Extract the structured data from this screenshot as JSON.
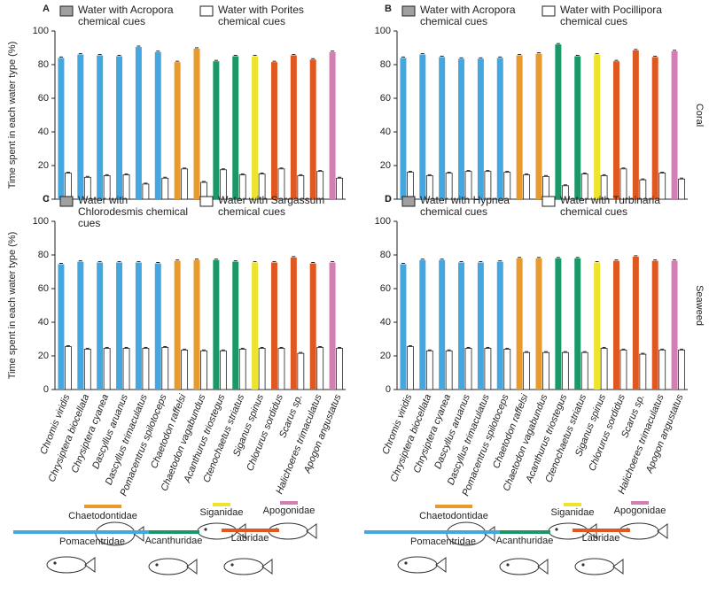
{
  "chart_data": [
    {
      "type": "bar",
      "panel": "A",
      "ylabel": "Time spent in each water type (%)",
      "ylim": [
        0,
        100
      ],
      "yticks": [
        0,
        20,
        40,
        60,
        80,
        100
      ],
      "series": [
        {
          "name": "Water with Acropora chemical cues",
          "color": "#a0a0a0",
          "colors": [
            "#45a7e0",
            "#45a7e0",
            "#45a7e0",
            "#45a7e0",
            "#45a7e0",
            "#45a7e0",
            "#e89a2c",
            "#e89a2c",
            "#1b9868",
            "#1b9868",
            "#eee42e",
            "#e0581f",
            "#e0581f",
            "#e0581f",
            "#d37fb3"
          ],
          "values": [
            84,
            86,
            85.5,
            85,
            90.5,
            87.5,
            81.5,
            89.5,
            82,
            85,
            85,
            81.5,
            85.5,
            83,
            87.5
          ]
        },
        {
          "name": "Water with Porites chemical cues",
          "color": "#ffffff",
          "values": [
            15.5,
            13,
            14,
            14.5,
            9,
            12.5,
            18,
            10,
            17.5,
            14.5,
            15,
            18,
            14,
            16.5,
            12.5
          ]
        }
      ]
    },
    {
      "type": "bar",
      "panel": "B",
      "row_label": "Coral",
      "ylim": [
        0,
        100
      ],
      "yticks": [
        0,
        20,
        40,
        60,
        80,
        100
      ],
      "series": [
        {
          "name": "Water with Acropora chemical cues",
          "color": "#a0a0a0",
          "colors": [
            "#45a7e0",
            "#45a7e0",
            "#45a7e0",
            "#45a7e0",
            "#45a7e0",
            "#45a7e0",
            "#e89a2c",
            "#e89a2c",
            "#1b9868",
            "#1b9868",
            "#eee42e",
            "#e0581f",
            "#e0581f",
            "#e0581f",
            "#d37fb3"
          ],
          "values": [
            84,
            86,
            84.5,
            83.5,
            83.5,
            84,
            85.5,
            86.5,
            92,
            85,
            86,
            82,
            88.5,
            84.5,
            88
          ]
        },
        {
          "name": "Water with Pocillipora chemical cues",
          "color": "#ffffff",
          "values": [
            16,
            14,
            15.5,
            16.5,
            16.5,
            16,
            14.5,
            13.5,
            8,
            15,
            14,
            18,
            11.5,
            15.5,
            12
          ]
        }
      ]
    },
    {
      "type": "bar",
      "panel": "C",
      "ylabel": "Time spent in each water type (%)",
      "ylim": [
        0,
        100
      ],
      "yticks": [
        0,
        20,
        40,
        60,
        80,
        100
      ],
      "categories": [
        "Chromis viridis",
        "Chrysiptera biocellata",
        "Chrysiptera cyanea",
        "Dascyllus aruanus",
        "Dascyllus trimaculatus",
        "Pomacentrus spilotoceps",
        "Chaetodon raffelsi",
        "Chaetodon vagabundus",
        "Acanthurus triostegus",
        "Ctenochaetus striatus",
        "Siganus spinus",
        "Chlorurus sordidus",
        "Scarus sp.",
        "Halichoeres trimaculatus",
        "Apogon angustatus"
      ],
      "series": [
        {
          "name": "Water with Chlorodesmis chemical cues",
          "color": "#a0a0a0",
          "colors": [
            "#45a7e0",
            "#45a7e0",
            "#45a7e0",
            "#45a7e0",
            "#45a7e0",
            "#45a7e0",
            "#e89a2c",
            "#e89a2c",
            "#1b9868",
            "#1b9868",
            "#eee42e",
            "#e0581f",
            "#e0581f",
            "#e0581f",
            "#d37fb3"
          ],
          "values": [
            74.5,
            76,
            75.5,
            75.5,
            75.5,
            75,
            76.5,
            77,
            77,
            76,
            75.5,
            75.5,
            78.5,
            75,
            75.5
          ]
        },
        {
          "name": "Water with Sargassum chemical cues",
          "color": "#ffffff",
          "values": [
            25.5,
            24,
            24.5,
            24.5,
            24.5,
            25,
            23.5,
            23,
            23,
            24,
            24.5,
            24.5,
            21.5,
            25,
            24.5
          ]
        }
      ]
    },
    {
      "type": "bar",
      "panel": "D",
      "row_label": "Seaweed",
      "ylim": [
        0,
        100
      ],
      "yticks": [
        0,
        20,
        40,
        60,
        80,
        100
      ],
      "categories": [
        "Chromis viridis",
        "Chrysiptera biocellata",
        "Chrysiptera cyanea",
        "Dascyllus aruanus",
        "Dascyllus trimaculatus",
        "Pomacentrus spilotoceps",
        "Chaetodon raffelsi",
        "Chaetodon vagabundus",
        "Acanthurus triostegus",
        "Ctenochaetus striatus",
        "Siganus spinus",
        "Chlorurus sordidus",
        "Scarus sp.",
        "Halichoeres trimaculatus",
        "Apogon angustatus"
      ],
      "series": [
        {
          "name": "Water with Hypnea chemical cues",
          "color": "#a0a0a0",
          "colors": [
            "#45a7e0",
            "#45a7e0",
            "#45a7e0",
            "#45a7e0",
            "#45a7e0",
            "#45a7e0",
            "#e89a2c",
            "#e89a2c",
            "#1b9868",
            "#1b9868",
            "#eee42e",
            "#e0581f",
            "#e0581f",
            "#e0581f",
            "#d37fb3"
          ],
          "values": [
            74.5,
            77,
            77,
            75.5,
            75.5,
            76,
            78,
            78,
            78,
            78,
            75.5,
            76.5,
            79,
            76.5,
            76.5
          ]
        },
        {
          "name": "Water with Turbinaria chemical cues",
          "color": "#ffffff",
          "values": [
            25.5,
            23,
            23,
            24.5,
            24.5,
            24,
            22,
            22,
            22,
            22,
            24.5,
            23.5,
            21,
            23.5,
            23.5
          ]
        }
      ]
    }
  ],
  "families": [
    {
      "name": "Chaetodontidae",
      "color": "#e89a2c"
    },
    {
      "name": "Siganidae",
      "color": "#eee42e"
    },
    {
      "name": "Apogonidae",
      "color": "#d37fb3"
    },
    {
      "name": "Pomacentridae",
      "color": "#45a7e0"
    },
    {
      "name": "Acanthuridae",
      "color": "#1b9868"
    },
    {
      "name": "Labridae",
      "color": "#e0581f"
    }
  ]
}
